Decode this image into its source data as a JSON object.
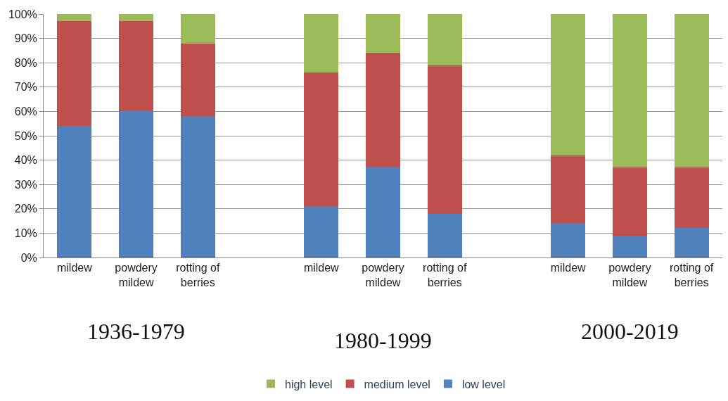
{
  "chart_data": {
    "type": "bar",
    "stacked": true,
    "categories": [
      "mildew",
      "powdery\nmildew",
      "rotting of\nberries",
      null,
      "mildew",
      "powdery\nmildew",
      "rotting of\nberries",
      null,
      "mildew",
      "powdery\nmildew",
      "rotting of\nberries"
    ],
    "series": [
      {
        "name": "low level",
        "color": "#4f81bd",
        "values": [
          54,
          60,
          58,
          null,
          21,
          37,
          18,
          null,
          14,
          9,
          12
        ]
      },
      {
        "name": "medium level",
        "color": "#c0504d",
        "values": [
          43,
          37,
          30,
          null,
          55,
          47,
          61,
          null,
          28,
          28,
          25
        ]
      },
      {
        "name": "high level",
        "color": "#9bbb59",
        "values": [
          3,
          3,
          12,
          null,
          24,
          16,
          21,
          null,
          58,
          63,
          63
        ]
      }
    ],
    "ylim": [
      0,
      100
    ],
    "yticks": [
      {
        "value": 0,
        "label": "0%"
      },
      {
        "value": 10,
        "label": "10%"
      },
      {
        "value": 20,
        "label": "20%"
      },
      {
        "value": 30,
        "label": "30%"
      },
      {
        "value": 40,
        "label": "40%"
      },
      {
        "value": 50,
        "label": "50%"
      },
      {
        "value": 60,
        "label": "60%"
      },
      {
        "value": 70,
        "label": "70%"
      },
      {
        "value": 80,
        "label": "80%"
      },
      {
        "value": 90,
        "label": "90%"
      },
      {
        "value": 100,
        "label": "100%"
      }
    ],
    "grid": "y",
    "legend": "bottom",
    "annotations": [
      "1936-1979",
      "1980-1999",
      "2000-2019"
    ]
  }
}
